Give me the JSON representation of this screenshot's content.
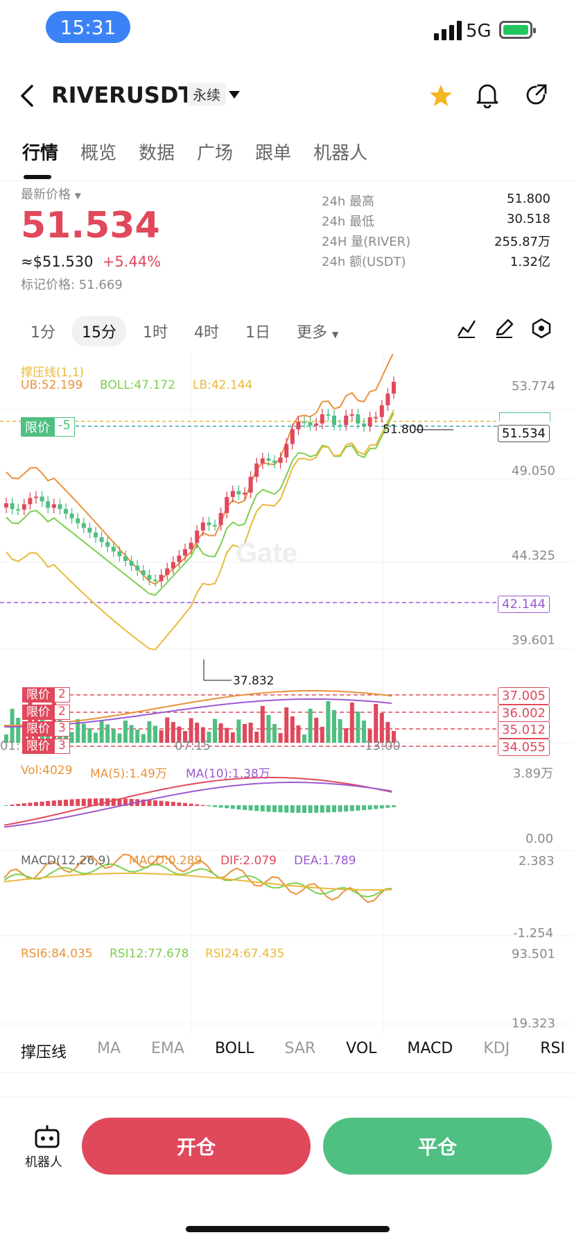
{
  "status_bar": {
    "time": "15:31",
    "network": "5G"
  },
  "header": {
    "symbol": "RIVERUSDT",
    "contract_type": "永续"
  },
  "tabs": [
    "行情",
    "概览",
    "数据",
    "广场",
    "跟单",
    "机器人"
  ],
  "price": {
    "latest_label": "最新价格",
    "latest": "51.534",
    "usd_approx": "≈$51.530",
    "change_pct": "+5.44%",
    "mark_label": "标记价格",
    "mark_value": "51.669"
  },
  "stats": [
    {
      "label": "24h  最高",
      "value": "51.800"
    },
    {
      "label": "24h  最低",
      "value": "30.518"
    },
    {
      "label": "24H  量(RIVER)",
      "value": "255.87万"
    },
    {
      "label": "24h  额(USDT)",
      "value": "1.32亿"
    }
  ],
  "intervals": [
    "1分",
    "15分",
    "1时",
    "4时",
    "1日"
  ],
  "interval_more": "更多",
  "chart": {
    "indicator_name": "撑压线(1,1)",
    "ub": "UB:52.199",
    "boll": "BOLL:47.172",
    "lb": "LB:42.144",
    "price_axis": [
      "53.774",
      "49.050",
      "44.325",
      "39.601"
    ],
    "limit_label": "限价",
    "limit_count": "-5",
    "current_price_tag": "51.534",
    "lb_tag": "42.144",
    "high_marker": "51.800",
    "low_marker": "37.832",
    "time_axis": [
      "01:",
      "07:15",
      "13:00"
    ],
    "orders": [
      {
        "label": "限价",
        "count": "2",
        "price": "37.005"
      },
      {
        "label": "限价",
        "count": "2",
        "price": "36.002"
      },
      {
        "label": "限价",
        "count": "3",
        "price": "35.012"
      },
      {
        "label": "限价",
        "count": "3",
        "price": "34.055"
      }
    ],
    "vol": {
      "vol": "Vol:4029",
      "ma5": "MA(5):1.49万",
      "ma10": "MA(10):1.38万",
      "top": "3.89万",
      "bottom": "0.00"
    },
    "macd": {
      "name": "MACD(12,26,9)",
      "macd": "MACD:0.289",
      "dif": "DIF:2.079",
      "dea": "DEA:1.789",
      "top": "2.383",
      "bottom": "-1.254"
    },
    "rsi": {
      "rsi6": "RSI6:84.035",
      "rsi12": "RSI12:77.678",
      "rsi24": "RSI24:67.435",
      "top": "93.501",
      "bottom": "19.323"
    },
    "colors": {
      "up": "#e0485b",
      "down": "#4fbf82",
      "ub": "#e8923a",
      "mid": "#7ccf4e",
      "lb": "#e9b93a"
    }
  },
  "indicator_tabs": [
    {
      "label": "撑压线",
      "active": true
    },
    {
      "label": "MA",
      "active": false
    },
    {
      "label": "EMA",
      "active": false
    },
    {
      "label": "BOLL",
      "active": true
    },
    {
      "label": "SAR",
      "active": false
    },
    {
      "label": "VOL",
      "active": true
    },
    {
      "label": "MACD",
      "active": true
    },
    {
      "label": "KDJ",
      "active": false
    },
    {
      "label": "RSI",
      "active": true
    }
  ],
  "bottom": {
    "robot_label": "机器人",
    "open_label": "开仓",
    "close_label": "平仓"
  }
}
